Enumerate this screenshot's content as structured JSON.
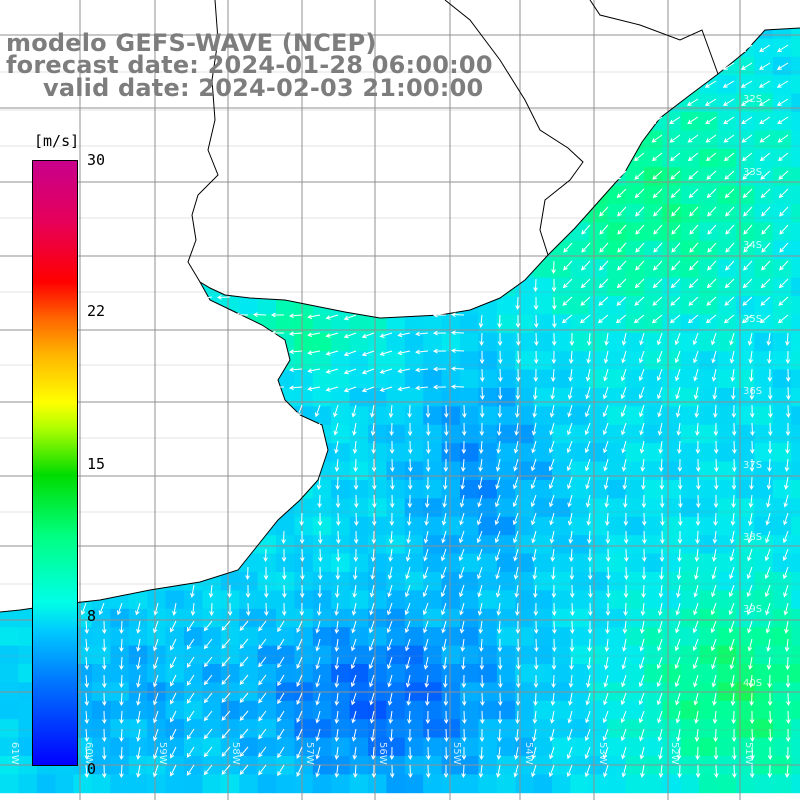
{
  "title": {
    "model": "modelo GEFS-WAVE (NCEP)",
    "forecast": "forecast date: 2024-01-28 06:00:00",
    "valid": "valid date: 2024-02-03 21:00:00"
  },
  "colorbar": {
    "unit": "[m/s]",
    "ticks": [
      {
        "label": "30",
        "value": 30
      },
      {
        "label": "22",
        "value": 22
      },
      {
        "label": "15",
        "value": 15
      },
      {
        "label": "8",
        "value": 8
      },
      {
        "label": "0",
        "value": 0
      }
    ],
    "colors": [
      "#0000ff",
      "#0078ff",
      "#00c8ff",
      "#00ffe6",
      "#00ff80",
      "#00dc00",
      "#b4ff00",
      "#ffff00",
      "#ff6400",
      "#ff0000",
      "#c8008c"
    ]
  },
  "lat_labels": [
    "32S",
    "33S",
    "34S",
    "35S",
    "36S",
    "37S",
    "38S",
    "39S",
    "40S"
  ],
  "lon_labels": [
    "61W",
    "60W",
    "59W",
    "58W",
    "57W",
    "56W",
    "55W",
    "54W",
    "53W",
    "52W",
    "51W"
  ],
  "map_colors": {
    "land": "#ffffff",
    "coast": "#000000",
    "grid": "#909090",
    "arrow": "#ffffff"
  }
}
